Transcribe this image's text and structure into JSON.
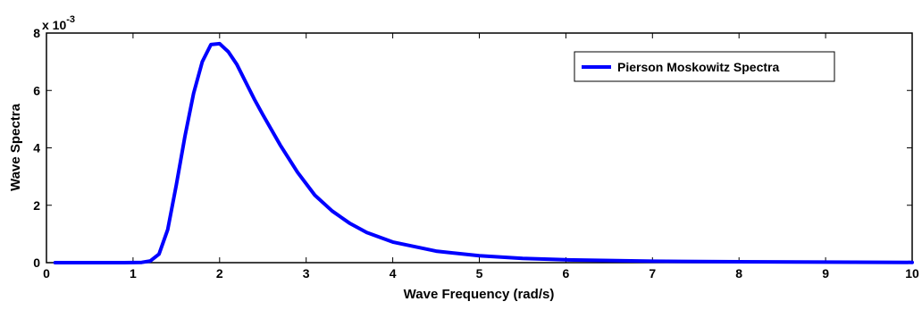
{
  "chart_data": {
    "type": "line",
    "title": "",
    "xlabel": "Wave Frequency (rad/s)",
    "ylabel": "Wave Spectra",
    "y_exponent_label": "x 10",
    "y_exponent_power": "-3",
    "xlim": [
      0,
      10
    ],
    "ylim": [
      0,
      8
    ],
    "xticks": [
      "0",
      "1",
      "2",
      "3",
      "4",
      "5",
      "6",
      "7",
      "8",
      "9",
      "10"
    ],
    "yticks": [
      "0",
      "2",
      "4",
      "6",
      "8"
    ],
    "grid": false,
    "legend_position": "top-right",
    "series_color": "#0000ff",
    "series": [
      {
        "name": "Pierson Moskowitz Spectra",
        "x": [
          0.1,
          0.5,
          0.9,
          1.1,
          1.2,
          1.3,
          1.4,
          1.5,
          1.6,
          1.7,
          1.8,
          1.9,
          2.0,
          2.1,
          2.2,
          2.3,
          2.4,
          2.5,
          2.7,
          2.9,
          3.1,
          3.3,
          3.5,
          3.7,
          4.0,
          4.5,
          5.0,
          5.5,
          6.0,
          7.0,
          8.0,
          9.0,
          10.0
        ],
        "values": [
          0.0,
          0.0,
          0.0,
          0.01,
          0.06,
          0.3,
          1.15,
          2.7,
          4.4,
          5.9,
          7.0,
          7.6,
          7.63,
          7.35,
          6.9,
          6.3,
          5.7,
          5.15,
          4.1,
          3.15,
          2.35,
          1.8,
          1.38,
          1.05,
          0.72,
          0.4,
          0.24,
          0.15,
          0.1,
          0.05,
          0.03,
          0.02,
          0.01
        ]
      }
    ]
  }
}
